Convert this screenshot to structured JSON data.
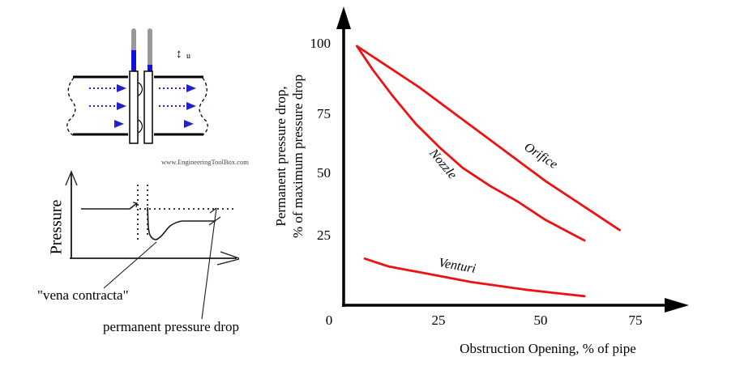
{
  "watermark": "www.EngineeringToolBox.com",
  "pipe_diagram": {
    "velocity_symbol": "↕",
    "velocity_label": "u"
  },
  "pressure_graph": {
    "y_axis_label": "Pressure",
    "annotation_vena_contracta": "\"vena contracta\"",
    "annotation_permanent_drop": "permanent pressure drop"
  },
  "colors": {
    "curve_red": "#ee1111",
    "arrow_blue": "#2222cc",
    "fluid_blue": "#1111dd",
    "tube_gray": "#999999"
  },
  "chart_data": {
    "type": "line",
    "xlabel": "Obstruction Opening, % of pipe",
    "ylabel_line1": "Permanent pressure drop,",
    "ylabel_line2": "% of maximum pressure drop",
    "x_ticks": [
      0,
      25,
      50,
      75
    ],
    "y_ticks": [
      100,
      75,
      50,
      25
    ],
    "xlim": [
      0,
      87
    ],
    "ylim": [
      0,
      113
    ],
    "grid": false,
    "legend": "labels along curves",
    "line_color": "#ee1111",
    "series": [
      {
        "name": "Orifice",
        "points": [
          [
            4,
            100
          ],
          [
            12,
            92
          ],
          [
            20,
            84
          ],
          [
            28,
            75
          ],
          [
            36,
            66
          ],
          [
            44,
            57
          ],
          [
            52,
            48
          ],
          [
            60,
            40
          ],
          [
            66,
            34
          ],
          [
            71,
            29
          ]
        ]
      },
      {
        "name": "Nozzle",
        "points": [
          [
            4,
            100
          ],
          [
            8,
            91
          ],
          [
            13,
            81
          ],
          [
            19,
            70
          ],
          [
            25,
            61
          ],
          [
            31,
            53
          ],
          [
            38,
            46
          ],
          [
            45,
            40
          ],
          [
            52,
            33
          ],
          [
            57,
            29
          ],
          [
            62,
            25
          ]
        ]
      },
      {
        "name": "Venturi",
        "points": [
          [
            6,
            18
          ],
          [
            12,
            15
          ],
          [
            19,
            13
          ],
          [
            26,
            11
          ],
          [
            33,
            9
          ],
          [
            40,
            7.5
          ],
          [
            47,
            6
          ],
          [
            54,
            4.8
          ],
          [
            62,
            3.5
          ]
        ]
      }
    ]
  }
}
